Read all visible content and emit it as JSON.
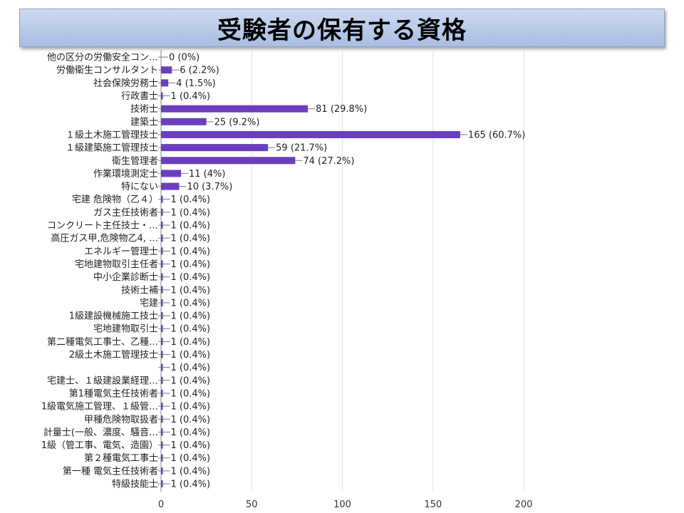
{
  "page": {
    "title": "受験者の保有する資格"
  },
  "colors": {
    "bar": "#6a3fbf",
    "grid": "#e3e3e3",
    "axis": "#888888",
    "banner": "#b7c8e8"
  },
  "chart_data": {
    "type": "bar",
    "orientation": "horizontal",
    "grid": true,
    "xlim": [
      0,
      200
    ],
    "xticks": [
      0,
      50,
      100,
      150,
      200
    ],
    "categories": [
      "他の区分の労働安全コン…",
      "労働衛生コンサルタント",
      "社会保険労務士",
      "行政書士",
      "技術士",
      "建築士",
      "１級土木施工管理技士",
      "１級建築施工管理技士",
      "衛生管理者",
      "作業環境測定士",
      "特にない",
      "宅建 危険物（乙４）",
      "ガス主任技術者",
      "コンクリート主任技士・…",
      "高圧ガス甲,危険物乙4, …",
      "エネルギー管理士",
      "宅地建物取引主任者",
      "中小企業診断士",
      "技術士補",
      "宅建",
      "1級建設機械施工技士",
      "宅地建物取引士",
      "第二種電気工事士、乙種…",
      "2級土木施工管理技士",
      "",
      "宅建士、１級建設業経理…",
      "第1種電気主任技術者",
      "1級電気施工管理、１級管…",
      "甲種危険物取扱者",
      "計量士(一般、濃度、騒音…",
      "1級（管工事、電気、造園）",
      "第２種電気工事士",
      "第一種 電気主任技術者",
      "特級技能士"
    ],
    "values": [
      0,
      6,
      4,
      1,
      81,
      25,
      165,
      59,
      74,
      11,
      10,
      1,
      1,
      1,
      1,
      1,
      1,
      1,
      1,
      1,
      1,
      1,
      1,
      1,
      1,
      1,
      1,
      1,
      1,
      1,
      1,
      1,
      1,
      1
    ],
    "data_labels": [
      "0 (0%)",
      "6 (2.2%)",
      "4 (1.5%)",
      "1 (0.4%)",
      "81 (29.8%)",
      "25 (9.2%)",
      "165 (60.7%)",
      "59 (21.7%)",
      "74 (27.2%)",
      "11 (4%)",
      "10 (3.7%)",
      "1 (0.4%)",
      "1 (0.4%)",
      "1 (0.4%)",
      "1 (0.4%)",
      "1 (0.4%)",
      "1 (0.4%)",
      "1 (0.4%)",
      "1 (0.4%)",
      "1 (0.4%)",
      "1 (0.4%)",
      "1 (0.4%)",
      "1 (0.4%)",
      "1 (0.4%)",
      "1 (0.4%)",
      "1 (0.4%)",
      "1 (0.4%)",
      "1 (0.4%)",
      "1 (0.4%)",
      "1 (0.4%)",
      "1 (0.4%)",
      "1 (0.4%)",
      "1 (0.4%)",
      "1 (0.4%)"
    ]
  }
}
